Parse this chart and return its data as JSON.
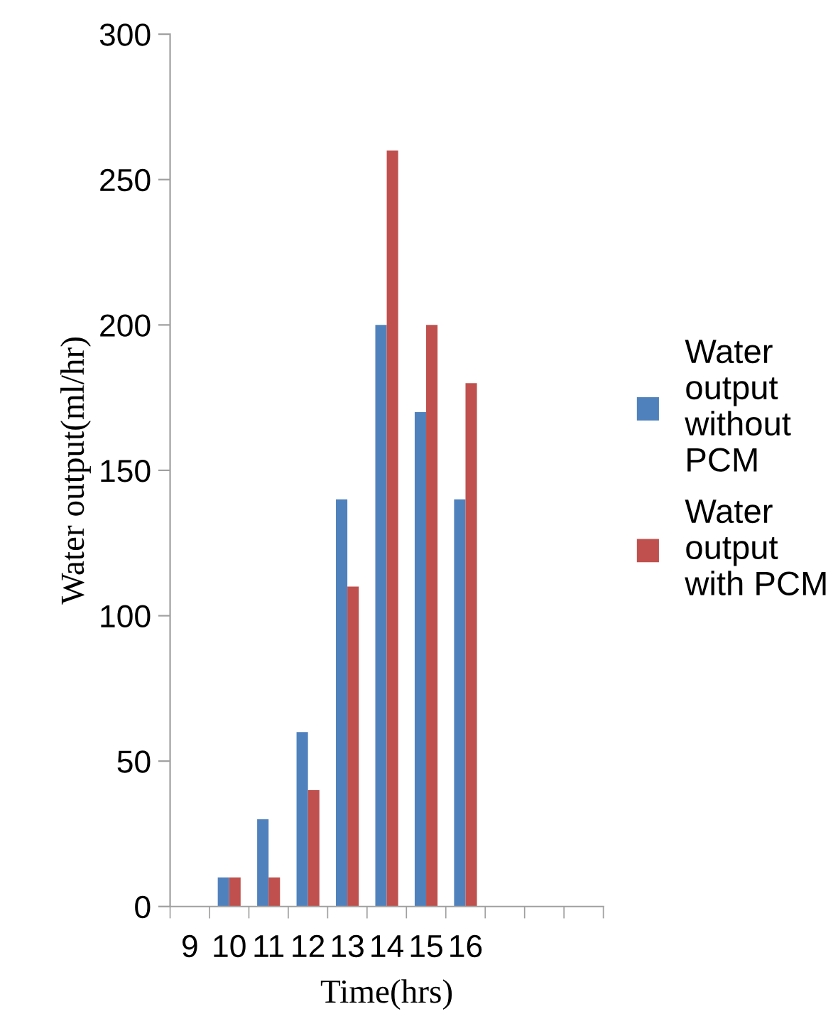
{
  "chart_data": {
    "type": "bar",
    "xlabel": "Time(hrs)",
    "ylabel": "Water output(ml/hr)",
    "categories": [
      "9",
      "10",
      "11",
      "12",
      "13",
      "14",
      "15",
      "16",
      null,
      null,
      null
    ],
    "series": [
      {
        "name": "Water output without PCM",
        "color": "#4f81bd",
        "values": [
          null,
          10,
          30,
          60,
          140,
          200,
          170,
          140,
          null,
          null,
          null
        ]
      },
      {
        "name": "Water output with PCM",
        "color": "#c0504d",
        "values": [
          null,
          10,
          10,
          40,
          110,
          260,
          200,
          180,
          null,
          null,
          null
        ]
      }
    ],
    "ylim": [
      0,
      300
    ],
    "yticks": [
      0,
      50,
      100,
      150,
      200,
      250,
      300
    ],
    "grid": false,
    "legend": "right"
  }
}
